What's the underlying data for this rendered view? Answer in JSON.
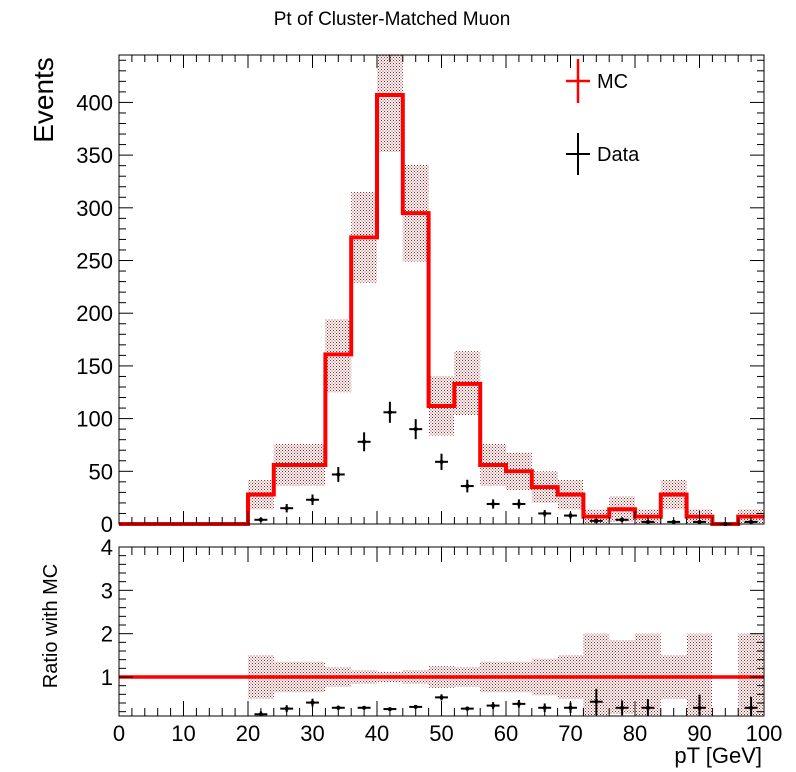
{
  "chart_data": [
    {
      "type": "histogram",
      "title": "Pt of Cluster-Matched Muon",
      "ylabel": "Events",
      "xlim": [
        0,
        100
      ],
      "ylim": [
        0,
        445
      ],
      "y_ticks": [
        0,
        50,
        100,
        150,
        200,
        250,
        300,
        350,
        400
      ],
      "bin_width": 4,
      "legend": {
        "placement": "top-right",
        "entries": [
          "MC",
          "Data"
        ]
      },
      "colors": {
        "mc": "#ff0000",
        "mc_band": "#a01818",
        "data": "#000000"
      },
      "series": [
        {
          "name": "MC",
          "style": "step-line-with-error-band",
          "x_low": [
            0,
            4,
            8,
            12,
            16,
            20,
            24,
            28,
            32,
            36,
            40,
            44,
            48,
            52,
            56,
            60,
            64,
            68,
            72,
            76,
            80,
            84,
            88,
            92,
            96
          ],
          "values": [
            0,
            0,
            0,
            0,
            0,
            28,
            56,
            56,
            161,
            272,
            407,
            295,
            112,
            133,
            56,
            50,
            35,
            28,
            7,
            14,
            7,
            28,
            7,
            0,
            7
          ],
          "band_low": [
            0,
            0,
            0,
            0,
            0,
            14,
            36,
            36,
            125,
            229,
            353,
            249,
            84,
            103,
            36,
            32,
            20,
            14,
            0,
            2,
            0,
            14,
            0,
            0,
            0
          ],
          "band_high": [
            0,
            0,
            0,
            0,
            0,
            42,
            76,
            76,
            194,
            315,
            445,
            341,
            140,
            164,
            76,
            68,
            50,
            42,
            14,
            26,
            14,
            42,
            14,
            0,
            14
          ]
        },
        {
          "name": "Data",
          "style": "points-with-errors",
          "x": [
            22,
            26,
            30,
            34,
            38,
            42,
            46,
            50,
            54,
            58,
            62,
            66,
            70,
            74,
            78,
            82,
            86,
            90,
            94,
            98
          ],
          "values": [
            4,
            15,
            23,
            47,
            78,
            106,
            90,
            59,
            36,
            19,
            19,
            10,
            8,
            3,
            4,
            2,
            2,
            2,
            0,
            2
          ],
          "errors": [
            2,
            4,
            5,
            7,
            9,
            10,
            9.5,
            7.7,
            6,
            4.4,
            4.4,
            3.2,
            2.8,
            1.7,
            2,
            1.4,
            1.4,
            1.4,
            0,
            1.4
          ]
        }
      ]
    },
    {
      "type": "histogram",
      "ylabel": "Ratio with MC",
      "xlabel": "pT [GeV]",
      "xlim": [
        0,
        100
      ],
      "ylim": [
        0.1,
        4
      ],
      "y_ticks": [
        1,
        2,
        3,
        4
      ],
      "x_ticks": [
        0,
        10,
        20,
        30,
        40,
        50,
        60,
        70,
        80,
        90,
        100
      ],
      "reference_line": 1,
      "series": [
        {
          "name": "MC",
          "style": "error-band",
          "x_low": [
            20,
            24,
            28,
            32,
            36,
            40,
            44,
            48,
            52,
            56,
            60,
            64,
            68,
            72,
            76,
            80,
            84,
            88,
            96
          ],
          "band_low": [
            0.5,
            0.65,
            0.65,
            0.78,
            0.84,
            0.87,
            0.85,
            0.75,
            0.78,
            0.65,
            0.65,
            0.58,
            0.5,
            0,
            0.15,
            0,
            0.5,
            0,
            0
          ],
          "band_high": [
            1.5,
            1.35,
            1.35,
            1.22,
            1.16,
            1.13,
            1.15,
            1.25,
            1.22,
            1.35,
            1.35,
            1.42,
            1.5,
            2,
            1.85,
            2,
            1.5,
            2,
            2
          ]
        },
        {
          "name": "Data",
          "style": "points-with-errors",
          "x": [
            22,
            26,
            30,
            34,
            38,
            42,
            46,
            50,
            54,
            58,
            62,
            66,
            70,
            74,
            78,
            82,
            90,
            98
          ],
          "values": [
            0.14,
            0.27,
            0.41,
            0.29,
            0.29,
            0.26,
            0.31,
            0.53,
            0.27,
            0.34,
            0.38,
            0.29,
            0.29,
            0.43,
            0.29,
            0.29,
            0.29,
            0.29
          ],
          "errors": [
            0.07,
            0.08,
            0.09,
            0.05,
            0.04,
            0.03,
            0.04,
            0.07,
            0.05,
            0.08,
            0.09,
            0.1,
            0.12,
            0.3,
            0.17,
            0.2,
            0.3,
            0.25
          ]
        }
      ]
    }
  ]
}
